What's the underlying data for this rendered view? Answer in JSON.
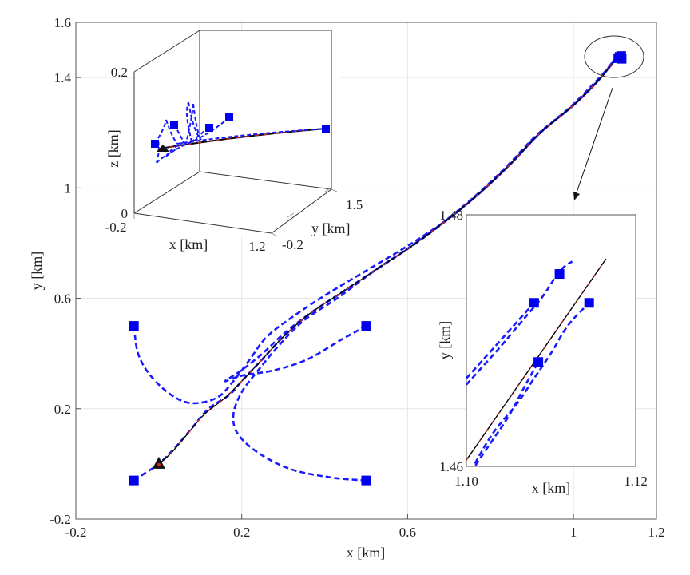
{
  "chart_data": {
    "type": "line",
    "main": {
      "xlabel": "x [km]",
      "ylabel": "y [km]",
      "xlim": [
        -0.2,
        1.2
      ],
      "ylim": [
        -0.2,
        1.6
      ],
      "xticks": [
        "-0.2",
        "0.2",
        "0.6",
        "1",
        "1.2"
      ],
      "xtick_values": [
        -0.2,
        0.2,
        0.6,
        1.0,
        1.2
      ],
      "yticks": [
        "-0.2",
        "0.2",
        "0.6",
        "1",
        "1.4",
        "1.6"
      ],
      "ytick_values": [
        -0.2,
        0.2,
        0.6,
        1.0,
        1.4,
        1.6
      ],
      "grid": true,
      "start_marker": [
        0.0,
        0.0
      ],
      "reference_path": [
        [
          0.0,
          0.0
        ],
        [
          0.03,
          0.04
        ],
        [
          0.07,
          0.11
        ],
        [
          0.11,
          0.18
        ],
        [
          0.16,
          0.24
        ],
        [
          0.2,
          0.3
        ],
        [
          0.25,
          0.38
        ],
        [
          0.3,
          0.46
        ],
        [
          0.36,
          0.54
        ],
        [
          0.44,
          0.62
        ],
        [
          0.53,
          0.71
        ],
        [
          0.62,
          0.8
        ],
        [
          0.7,
          0.89
        ],
        [
          0.78,
          0.99
        ],
        [
          0.85,
          1.09
        ],
        [
          0.92,
          1.2
        ],
        [
          1.0,
          1.3
        ],
        [
          1.06,
          1.39
        ],
        [
          1.1,
          1.46
        ],
        [
          1.12,
          1.48
        ]
      ],
      "agent_paths": [
        {
          "start": [
            -0.06,
            0.5
          ],
          "points": [
            [
              -0.06,
              0.5
            ],
            [
              -0.05,
              0.4
            ],
            [
              -0.02,
              0.32
            ],
            [
              0.03,
              0.25
            ],
            [
              0.08,
              0.22
            ],
            [
              0.14,
              0.24
            ],
            [
              0.18,
              0.3
            ],
            [
              0.22,
              0.38
            ],
            [
              0.26,
              0.46
            ],
            [
              0.32,
              0.53
            ],
            [
              0.4,
              0.61
            ],
            [
              0.5,
              0.7
            ],
            [
              0.6,
              0.79
            ],
            [
              0.7,
              0.89
            ],
            [
              0.78,
              0.99
            ],
            [
              0.85,
              1.09
            ],
            [
              0.92,
              1.2
            ],
            [
              1.0,
              1.3
            ],
            [
              1.06,
              1.39
            ],
            [
              1.1,
              1.465
            ],
            [
              1.11,
              1.475
            ]
          ]
        },
        {
          "start": [
            0.5,
            0.5
          ],
          "points": [
            [
              0.5,
              0.5
            ],
            [
              0.44,
              0.45
            ],
            [
              0.36,
              0.38
            ],
            [
              0.28,
              0.34
            ],
            [
              0.2,
              0.32
            ],
            [
              0.16,
              0.3
            ],
            [
              0.2,
              0.34
            ],
            [
              0.25,
              0.4
            ],
            [
              0.3,
              0.47
            ],
            [
              0.36,
              0.54
            ],
            [
              0.44,
              0.62
            ],
            [
              0.53,
              0.71
            ],
            [
              0.62,
              0.8
            ],
            [
              0.7,
              0.89
            ],
            [
              0.78,
              0.99
            ],
            [
              0.85,
              1.09
            ],
            [
              0.92,
              1.2
            ],
            [
              1.0,
              1.3
            ],
            [
              1.06,
              1.39
            ],
            [
              1.1,
              1.467
            ],
            [
              1.115,
              1.478
            ]
          ]
        },
        {
          "start": [
            -0.06,
            -0.06
          ],
          "points": [
            [
              -0.06,
              -0.06
            ],
            [
              -0.03,
              -0.03
            ],
            [
              0.0,
              0.0
            ],
            [
              0.04,
              0.06
            ],
            [
              0.08,
              0.13
            ],
            [
              0.12,
              0.2
            ],
            [
              0.17,
              0.25
            ],
            [
              0.2,
              0.3
            ],
            [
              0.25,
              0.38
            ],
            [
              0.3,
              0.46
            ],
            [
              0.36,
              0.54
            ],
            [
              0.44,
              0.62
            ],
            [
              0.53,
              0.71
            ],
            [
              0.62,
              0.8
            ],
            [
              0.7,
              0.89
            ],
            [
              0.78,
              0.99
            ],
            [
              0.85,
              1.09
            ],
            [
              0.92,
              1.2
            ],
            [
              1.0,
              1.3
            ],
            [
              1.06,
              1.39
            ],
            [
              1.1,
              1.462
            ],
            [
              1.108,
              1.47
            ]
          ]
        },
        {
          "start": [
            0.5,
            -0.06
          ],
          "points": [
            [
              0.5,
              -0.06
            ],
            [
              0.42,
              -0.05
            ],
            [
              0.32,
              -0.02
            ],
            [
              0.24,
              0.04
            ],
            [
              0.19,
              0.11
            ],
            [
              0.18,
              0.18
            ],
            [
              0.2,
              0.26
            ],
            [
              0.24,
              0.34
            ],
            [
              0.29,
              0.43
            ],
            [
              0.35,
              0.52
            ],
            [
              0.43,
              0.6
            ],
            [
              0.52,
              0.7
            ],
            [
              0.61,
              0.79
            ],
            [
              0.69,
              0.88
            ],
            [
              0.77,
              0.98
            ],
            [
              0.84,
              1.08
            ],
            [
              0.91,
              1.19
            ],
            [
              0.99,
              1.29
            ],
            [
              1.05,
              1.38
            ],
            [
              1.1,
              1.458
            ],
            [
              1.116,
              1.468
            ]
          ]
        }
      ],
      "end_markers": [
        [
          1.108,
          1.47
        ],
        [
          1.111,
          1.475
        ],
        [
          1.115,
          1.478
        ],
        [
          1.116,
          1.468
        ]
      ]
    },
    "inset3d": {
      "xlabel": "x [km]",
      "ylabel": "y [km]",
      "zlabel": "z [km]",
      "xticks": [
        "-0.2",
        "1.2"
      ],
      "yticks": [
        "-0.2",
        "1.5"
      ],
      "zticks": [
        "0",
        "0.2"
      ]
    },
    "zoom": {
      "xlabel": "x [km]",
      "ylabel": "y [km]",
      "xlim": [
        1.1,
        1.12
      ],
      "ylim": [
        1.46,
        1.48
      ],
      "xticks": [
        "1.10",
        "1.12"
      ],
      "xtick_values": [
        1.1,
        1.12
      ],
      "yticks": [
        "1.46",
        "1.48"
      ],
      "ytick_values": [
        1.46,
        1.48
      ],
      "reference_line": [
        [
          1.1,
          1.4605
        ],
        [
          1.1165,
          1.4765
        ]
      ],
      "agent_lines": [
        {
          "points": [
            [
              1.1,
              1.4665
            ],
            [
              1.102,
              1.468
            ],
            [
              1.104,
              1.4695
            ],
            [
              1.1065,
              1.4715
            ],
            [
              1.109,
              1.4735
            ],
            [
              1.111,
              1.4755
            ],
            [
              1.1125,
              1.4763
            ]
          ],
          "end": [
            1.111,
            1.4753
          ]
        },
        {
          "points": [
            [
              1.1,
              1.467
            ],
            [
              1.102,
              1.4685
            ],
            [
              1.104,
              1.47
            ],
            [
              1.106,
              1.4715
            ],
            [
              1.108,
              1.473
            ]
          ],
          "end": [
            1.108,
            1.473
          ]
        },
        {
          "points": [
            [
              1.1,
              1.459
            ],
            [
              1.103,
              1.4625
            ],
            [
              1.106,
              1.465
            ],
            [
              1.108,
              1.467
            ],
            [
              1.11,
              1.469
            ],
            [
              1.112,
              1.4712
            ],
            [
              1.1145,
              1.473
            ]
          ],
          "end": [
            1.1145,
            1.473
          ]
        },
        {
          "points": [
            [
              1.1005,
              1.4595
            ],
            [
              1.103,
              1.462
            ],
            [
              1.105,
              1.464
            ],
            [
              1.107,
              1.4665
            ],
            [
              1.1085,
              1.4683
            ]
          ],
          "end": [
            1.1085,
            1.4683
          ]
        }
      ]
    },
    "colors": {
      "agent": "#1a1aff",
      "reference": "#000000",
      "reference_dash": "#d62020",
      "marker": "#0000ee",
      "grid": "#e6e6e6"
    }
  }
}
